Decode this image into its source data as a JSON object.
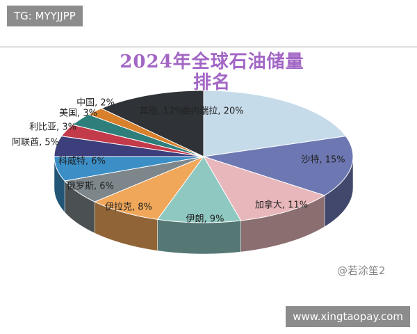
{
  "header": {
    "badge": "TG: MYYJJPP"
  },
  "footer": {
    "badge": "www.xingtaopay.com",
    "watermark": "@若涂笙2"
  },
  "chart_data": {
    "type": "pie3d",
    "title": "2024年全球石油储量排名",
    "values": [
      20,
      15,
      11,
      9,
      8,
      6,
      6,
      5,
      3,
      3,
      2,
      12
    ],
    "value_labels": [
      "委内瑞拉, 20%",
      "沙特, 15%",
      "加拿大, 11%",
      "伊朗, 9%",
      "伊拉克, 8%",
      "俄罗斯, 6%",
      "科威特, 6%",
      "阿联酋, 5%",
      "利比亚, 3%",
      "美国, 3%",
      "中国, 2%",
      "其他, 12%"
    ],
    "colors": [
      "#c6dbe9",
      "#6d78b3",
      "#e8b7bb",
      "#8ec8c1",
      "#f0a75a",
      "#7d878b",
      "#3b8ec6",
      "#3d3f7c",
      "#c33a4b",
      "#2e7f7b",
      "#d8802c",
      "#2f3337"
    ]
  }
}
